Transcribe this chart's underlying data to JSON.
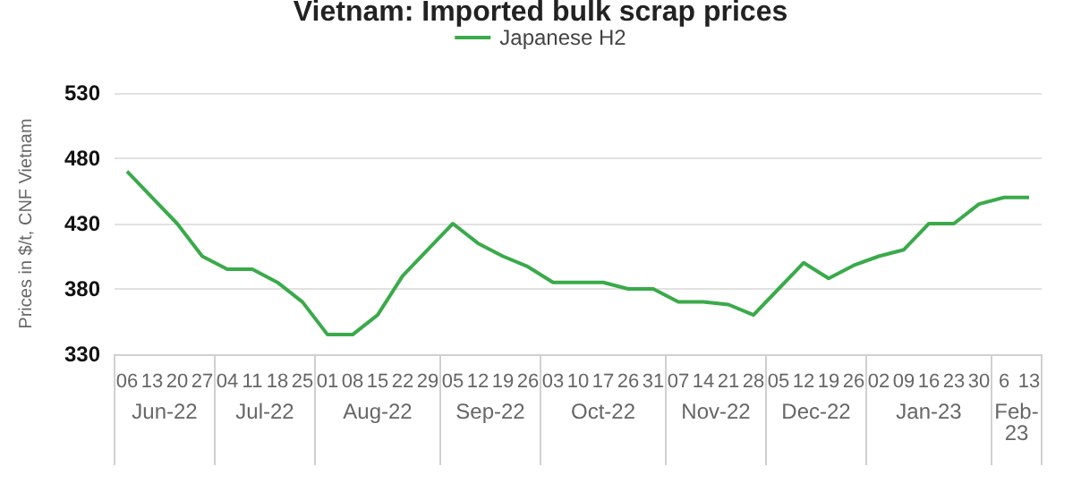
{
  "chart_data": {
    "type": "line",
    "title": "Vietnam: Imported bulk scrap prices",
    "ylabel": "Prices in $/t, CNF Vietnam",
    "categories": [
      "06",
      "13",
      "20",
      "27",
      "04",
      "11",
      "18",
      "25",
      "01",
      "08",
      "15",
      "22",
      "29",
      "05",
      "12",
      "19",
      "26",
      "03",
      "10",
      "17",
      "26",
      "31",
      "07",
      "14",
      "21",
      "28",
      "05",
      "12",
      "19",
      "26",
      "02",
      "09",
      "16",
      "23",
      "30",
      "6",
      "13"
    ],
    "series": [
      {
        "name": "Japanese H2",
        "color": "#3aaa4a",
        "values": [
          470,
          450,
          430,
          405,
          395,
          395,
          385,
          370,
          345,
          345,
          360,
          390,
          410,
          430,
          415,
          405,
          397,
          385,
          385,
          385,
          380,
          380,
          370,
          370,
          368,
          360,
          380,
          400,
          388,
          398,
          405,
          410,
          430,
          430,
          445,
          450,
          450
        ]
      }
    ],
    "annotations": [
      "Jun-22",
      "Jul-22",
      "Aug-22",
      "Sep-22",
      "Oct-22",
      "Nov-22",
      "Dec-22",
      "Jan-23",
      "Feb-\n23"
    ],
    "ylim": [
      330,
      530
    ],
    "yticks": [
      330,
      380,
      430,
      480,
      530
    ],
    "grid": "y",
    "legend": "top",
    "marker": "none",
    "line_style": "solid"
  }
}
